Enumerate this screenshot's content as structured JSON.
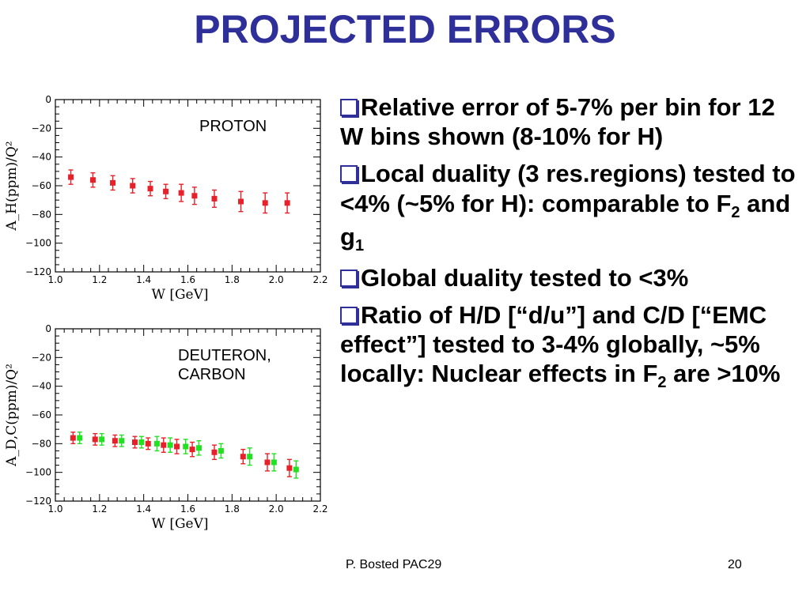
{
  "slide": {
    "title": "PROJECTED ERRORS",
    "footer_left": "P. Bosted PAC29",
    "page_number": "20"
  },
  "bullets": [
    {
      "text": "Relative error of 5-7% per bin for 12 W bins shown (8-10% for H)"
    },
    {
      "parts": [
        "Local duality (3 res.regions) tested to <4% (~5% for H): comparable to F",
        "2",
        " and g",
        "1"
      ]
    },
    {
      "text": "Global duality tested to <3%"
    },
    {
      "parts": [
        "Ratio of H/D [“d/u”] and C/D [“EMC effect”] tested to 3-4% globally, ~5% locally: Nuclear effects in F",
        "2",
        " are >10%"
      ]
    }
  ],
  "colors": {
    "title": "#2f2f9a",
    "series_red": "#e8202a",
    "series_green": "#22e022"
  },
  "chart_data": [
    {
      "type": "scatter",
      "annotation": "PROTON",
      "xlabel": "W [GeV]",
      "ylabel": "A_H(ppm)/Q²",
      "xlim": [
        1.0,
        2.2
      ],
      "ylim": [
        -120,
        0
      ],
      "xticks": [
        "1.0",
        "1.2",
        "1.4",
        "1.6",
        "1.8",
        "2.0",
        "2.2"
      ],
      "yticks": [
        "0",
        "−20",
        "−40",
        "−60",
        "−80",
        "−100",
        "−120"
      ],
      "series": [
        {
          "color": "#e8202a",
          "x": [
            1.07,
            1.17,
            1.26,
            1.35,
            1.43,
            1.5,
            1.57,
            1.63,
            1.72,
            1.84,
            1.95,
            2.05
          ],
          "y": [
            -54,
            -56,
            -58,
            -60,
            -62,
            -64,
            -65,
            -67,
            -69,
            -71,
            -72,
            -72
          ],
          "err": [
            5,
            5,
            5,
            5,
            5,
            5,
            6,
            6,
            6,
            7,
            7,
            7
          ]
        }
      ]
    },
    {
      "type": "scatter",
      "annotation": "DEUTERON,\nCARBON",
      "xlabel": "W [GeV]",
      "ylabel": "A_D,C(ppm)/Q²",
      "xlim": [
        1.0,
        2.2
      ],
      "ylim": [
        -120,
        0
      ],
      "xticks": [
        "1.0",
        "1.2",
        "1.4",
        "1.6",
        "1.8",
        "2.0",
        "2.2"
      ],
      "yticks": [
        "0",
        "−20",
        "−40",
        "−60",
        "−80",
        "−100",
        "−120"
      ],
      "series": [
        {
          "color": "#e8202a",
          "x": [
            1.08,
            1.18,
            1.27,
            1.36,
            1.42,
            1.49,
            1.55,
            1.62,
            1.72,
            1.85,
            1.96,
            2.06
          ],
          "y": [
            -76,
            -77,
            -78,
            -79,
            -80,
            -81,
            -82,
            -84,
            -86,
            -89,
            -93,
            -97
          ],
          "err": [
            4,
            4,
            4,
            4,
            4,
            5,
            5,
            5,
            5,
            5,
            6,
            6
          ]
        },
        {
          "color": "#22e022",
          "x": [
            1.11,
            1.21,
            1.3,
            1.39,
            1.46,
            1.52,
            1.59,
            1.65,
            1.75,
            1.88,
            1.99,
            2.09
          ],
          "y": [
            -76,
            -77,
            -78,
            -79,
            -80,
            -81,
            -82,
            -83,
            -85,
            -89,
            -93,
            -98
          ],
          "err": [
            4,
            4,
            4,
            4,
            5,
            5,
            5,
            5,
            5,
            6,
            6,
            6
          ]
        }
      ]
    }
  ]
}
